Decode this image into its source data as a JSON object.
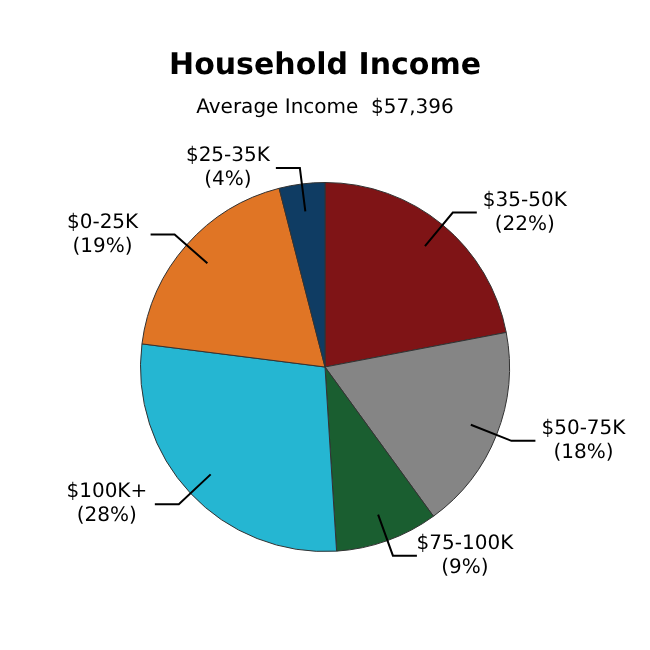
{
  "chart_data": {
    "type": "pie",
    "title": "Household Income",
    "subtitle": "Average Income  $57,396",
    "categories": [
      "$35-50K",
      "$50-75K",
      "$75-100K",
      "$100K+",
      "$0-25K",
      "$25-35K"
    ],
    "values": [
      22,
      18,
      9,
      28,
      19,
      4
    ],
    "value_labels": [
      "(22%)",
      "(18%)",
      "(9%)",
      "(28%)",
      "(19%)",
      "(4%)"
    ],
    "colors": [
      "#7f1416",
      "#858585",
      "#1a5e30",
      "#25b6d2",
      "#e07525",
      "#0f3c63"
    ],
    "legend": false
  }
}
